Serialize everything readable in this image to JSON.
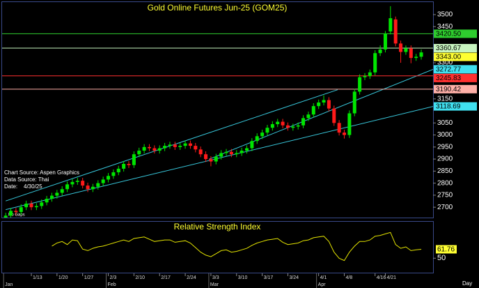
{
  "chart_data": [
    {
      "type": "candlestick",
      "title": "Gold Online Futures Jun-25 (GOM25)",
      "notes": [
        "Chart Source: Aspen Graphics",
        "Data Source: Thai",
        "Date:    4/30/25",
        "No Gaps"
      ],
      "xlabel": "Day",
      "categories": [
        null,
        null,
        null,
        null,
        null,
        "1/13",
        null,
        null,
        null,
        null,
        "1/20",
        null,
        null,
        null,
        null,
        "1/27",
        null,
        null,
        null,
        null,
        "2/3",
        null,
        null,
        null,
        null,
        "2/10",
        null,
        null,
        null,
        null,
        "2/17",
        null,
        null,
        null,
        null,
        "2/24",
        null,
        null,
        null,
        null,
        "3/3",
        null,
        null,
        null,
        null,
        "3/10",
        null,
        null,
        null,
        null,
        "3/17",
        null,
        null,
        null,
        null,
        "3/24",
        null,
        null,
        null,
        null,
        null,
        "4/1",
        null,
        null,
        null,
        null,
        "4/8",
        null,
        null,
        null,
        null,
        null,
        "4/16",
        null,
        "4/21",
        null,
        null,
        null,
        null,
        null,
        null,
        null
      ],
      "months": [
        "Jan",
        null,
        null,
        null,
        null,
        null,
        null,
        null,
        null,
        null,
        null,
        null,
        null,
        null,
        null,
        null,
        null,
        null,
        null,
        null,
        "Feb",
        null,
        null,
        null,
        null,
        null,
        null,
        null,
        null,
        null,
        null,
        null,
        null,
        null,
        null,
        null,
        null,
        null,
        null,
        null,
        "Mar",
        null,
        null,
        null,
        null,
        null,
        null,
        null,
        null,
        null,
        null,
        null,
        null,
        null,
        null,
        null,
        null,
        null,
        null,
        null,
        null,
        "Apr",
        null,
        null,
        null,
        null,
        null,
        null,
        null,
        null,
        null,
        null,
        null,
        null,
        null,
        null,
        null,
        null,
        null,
        null,
        null,
        null
      ],
      "open": [
        2650,
        2665,
        2685,
        2680,
        2700,
        2715,
        2700,
        2705,
        2720,
        2735,
        2748,
        2760,
        2775,
        2795,
        2805,
        2810,
        2790,
        2775,
        2785,
        2800,
        2815,
        2830,
        2845,
        2860,
        2880,
        2875,
        2920,
        2935,
        2950,
        2945,
        2935,
        2945,
        2955,
        2960,
        2950,
        2955,
        2965,
        2955,
        2940,
        2920,
        2900,
        2890,
        2910,
        2925,
        2930,
        2920,
        2925,
        2935,
        2945,
        2975,
        2995,
        3010,
        3030,
        3045,
        3055,
        3040,
        3030,
        3035,
        3040,
        3070,
        3085,
        3120,
        3135,
        3145,
        3110,
        3050,
        3010,
        3000,
        3090,
        3180,
        3240,
        3245,
        3260,
        3340,
        3355,
        3430,
        3480,
        3380,
        3345,
        3360,
        3320,
        3325
      ],
      "high": [
        2677,
        2697,
        2697,
        2712,
        2727,
        2727,
        2717,
        2732,
        2747,
        2760,
        2772,
        2787,
        2807,
        2817,
        2822,
        2822,
        2802,
        2797,
        2812,
        2827,
        2842,
        2857,
        2872,
        2892,
        2892,
        2932,
        2947,
        2962,
        2962,
        2957,
        2957,
        2967,
        2972,
        2972,
        2967,
        2977,
        2977,
        2967,
        2952,
        2932,
        2912,
        2922,
        2937,
        2942,
        2942,
        2937,
        2947,
        2957,
        2987,
        3007,
        3022,
        3042,
        3057,
        3067,
        3067,
        3052,
        3047,
        3052,
        3082,
        3097,
        3132,
        3147,
        3165,
        3157,
        3122,
        3062,
        3022,
        3102,
        3192,
        3252,
        3257,
        3272,
        3352,
        3372,
        3432,
        3535,
        3492,
        3392,
        3372,
        3372,
        3337,
        3355
      ],
      "low": [
        2638,
        2653,
        2668,
        2668,
        2688,
        2688,
        2688,
        2693,
        2708,
        2723,
        2736,
        2748,
        2763,
        2783,
        2793,
        2778,
        2763,
        2763,
        2773,
        2788,
        2803,
        2818,
        2833,
        2848,
        2863,
        2863,
        2908,
        2923,
        2933,
        2923,
        2923,
        2933,
        2943,
        2938,
        2938,
        2943,
        2943,
        2928,
        2908,
        2888,
        2870,
        2878,
        2898,
        2913,
        2908,
        2908,
        2913,
        2923,
        2933,
        2963,
        2983,
        2998,
        3018,
        3033,
        3028,
        3018,
        3018,
        3023,
        3028,
        3058,
        3073,
        3108,
        3123,
        3098,
        3038,
        2998,
        2985,
        2988,
        3078,
        3168,
        3228,
        3233,
        3248,
        3328,
        3343,
        3418,
        3368,
        3300,
        3333,
        3298,
        3308,
        3313
      ],
      "close": [
        2665,
        2685,
        2680,
        2700,
        2715,
        2700,
        2705,
        2720,
        2735,
        2748,
        2760,
        2775,
        2795,
        2805,
        2810,
        2790,
        2775,
        2785,
        2800,
        2815,
        2830,
        2845,
        2860,
        2880,
        2875,
        2920,
        2935,
        2950,
        2945,
        2935,
        2945,
        2955,
        2960,
        2950,
        2955,
        2965,
        2955,
        2940,
        2920,
        2900,
        2890,
        2910,
        2925,
        2930,
        2920,
        2925,
        2935,
        2945,
        2975,
        2995,
        3010,
        3030,
        3045,
        3055,
        3040,
        3030,
        3035,
        3040,
        3070,
        3085,
        3120,
        3135,
        3145,
        3110,
        3050,
        3010,
        3000,
        3090,
        3180,
        3240,
        3245,
        3260,
        3340,
        3355,
        3420,
        3485,
        3380,
        3345,
        3360,
        3320,
        3325,
        3343
      ],
      "up_color": "#00e600",
      "down_color": "#ff1a1a",
      "xlim": [
        -0.7,
        83.3
      ],
      "ylim": [
        2657,
        3552
      ],
      "yticks": [
        2700,
        2750,
        2800,
        2850,
        2900,
        2950,
        3000,
        3050,
        3150,
        3300,
        3450,
        3500
      ],
      "levels": [
        {
          "value": 3420.5,
          "label": "3420.50",
          "color": "#2ecc2e",
          "line": true
        },
        {
          "value": 3360.67,
          "label": "3360.67",
          "color": "#c8f5c0",
          "line": true
        },
        {
          "value": 3343,
          "label": "3343.00",
          "color": "#ffff33",
          "line": false
        },
        {
          "value": 3272.77,
          "label": "3272.77",
          "color": "#40e0f0",
          "line": false
        },
        {
          "value": 3245.83,
          "label": "3245.83",
          "color": "#ff3030",
          "line": true
        },
        {
          "value": 3190.42,
          "label": "3190.42",
          "color": "#ffb0a8",
          "line": true
        },
        {
          "value": 3118.69,
          "label": "3118.69",
          "color": "#40e0f0",
          "line": false
        }
      ],
      "trendlines": [
        {
          "x": [
            0,
            83.3
          ],
          "y": [
            2690,
            3118.69
          ],
          "color": "#38c8dc"
        },
        {
          "x": [
            0,
            64.7
          ],
          "y": [
            2726,
            3188
          ],
          "color": "#38c8dc"
        },
        {
          "x": [
            39.6,
            83.3
          ],
          "y": [
            2899,
            3272.77
          ],
          "color": "#38c8dc"
        }
      ]
    },
    {
      "type": "line",
      "title": "Relative Strength Index",
      "color": "#e6e600",
      "label_color": "#ffff33",
      "values": [
        null,
        null,
        null,
        null,
        null,
        null,
        null,
        null,
        null,
        66,
        70,
        72,
        68,
        74,
        73,
        62,
        60,
        63,
        65,
        66,
        68,
        70,
        72,
        74,
        72,
        76,
        77,
        78,
        75,
        72,
        73,
        74,
        74,
        71,
        72,
        73,
        70,
        64,
        58,
        54,
        52,
        56,
        60,
        61,
        58,
        59,
        61,
        63,
        67,
        70,
        72,
        74,
        75,
        76,
        71,
        68,
        69,
        70,
        73,
        74,
        77,
        78,
        79,
        72,
        58,
        50,
        47,
        58,
        66,
        72,
        72,
        74,
        79,
        80,
        82,
        84,
        68,
        63,
        65,
        60,
        61,
        61.76
      ],
      "ylim": [
        31,
        98
      ],
      "yticks": [
        50
      ]
    }
  ]
}
